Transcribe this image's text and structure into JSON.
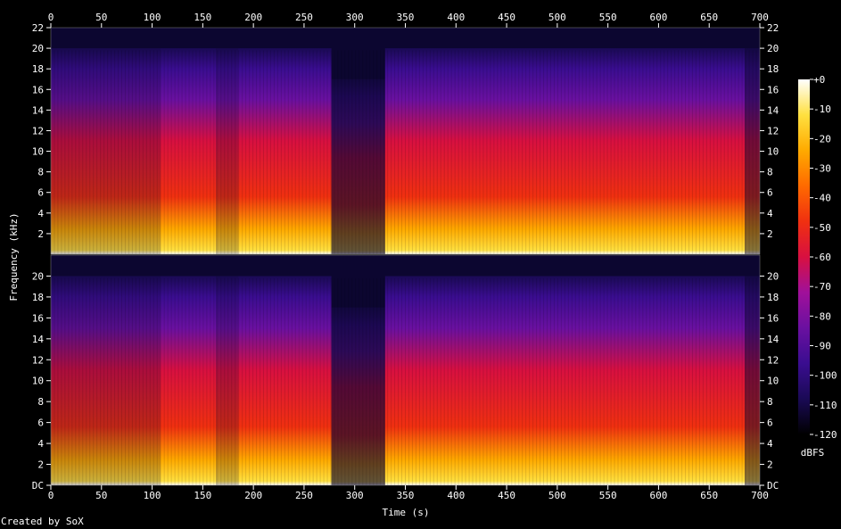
{
  "chart_data": {
    "type": "heatmap",
    "title": "",
    "xlabel": "Time (s)",
    "ylabel": "Frequency (kHz)",
    "xlim": [
      0,
      700
    ],
    "ylim_khz": [
      0,
      22
    ],
    "x_ticks": [
      "0",
      "50",
      "100",
      "150",
      "200",
      "250",
      "300",
      "350",
      "400",
      "450",
      "500",
      "550",
      "600",
      "650",
      "700"
    ],
    "channels": [
      {
        "name": "",
        "y_ticks": [
          "22",
          "20",
          "18",
          "16",
          "14",
          "12",
          "10",
          "8",
          "6",
          "4",
          "2"
        ]
      },
      {
        "name": "",
        "y_ticks": [
          "20",
          "18",
          "16",
          "14",
          "12",
          "10",
          "8",
          "6",
          "4",
          "2",
          "DC"
        ]
      }
    ],
    "colorbar": {
      "label": "dBFS",
      "ticks": [
        "+0",
        "-10",
        "-20",
        "-30",
        "-40",
        "-50",
        "-60",
        "-70",
        "-80",
        "-90",
        "-100",
        "-110",
        "-120"
      ],
      "range_db": [
        -120,
        0
      ],
      "colors": [
        "#000000",
        "#1a0a55",
        "#3a0d90",
        "#6a10a0",
        "#a0109a",
        "#d81040",
        "#f03010",
        "#ff6a00",
        "#ffaa00",
        "#ffe040",
        "#ffffff"
      ]
    },
    "segments_s": [
      {
        "start": 0,
        "end": 108,
        "cutoff_khz": 20,
        "level": "medium"
      },
      {
        "start": 108,
        "end": 163,
        "cutoff_khz": 20,
        "level": "loud"
      },
      {
        "start": 163,
        "end": 185,
        "cutoff_khz": 20,
        "level": "medium"
      },
      {
        "start": 185,
        "end": 277,
        "cutoff_khz": 20,
        "level": "loud"
      },
      {
        "start": 277,
        "end": 330,
        "cutoff_khz": 17,
        "level": "quiet"
      },
      {
        "start": 330,
        "end": 685,
        "cutoff_khz": 20,
        "level": "loud"
      },
      {
        "start": 685,
        "end": 700,
        "cutoff_khz": 20,
        "level": "fade-out"
      }
    ]
  },
  "footer": {
    "credit": "Created by SoX"
  }
}
